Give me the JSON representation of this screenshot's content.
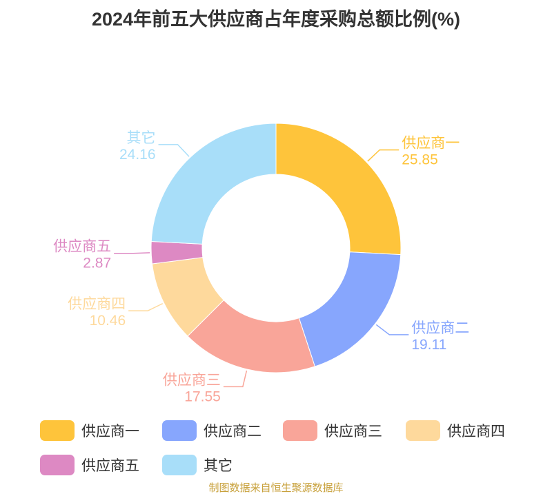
{
  "title": "2024年前五大供应商占年度采购总额比例(%)",
  "source": "制图数据来自恒生聚源数据库",
  "chart_data": {
    "type": "pie",
    "variant": "donut",
    "title": "2024年前五大供应商占年度采购总额比例(%)",
    "categories": [
      "供应商一",
      "供应商二",
      "供应商三",
      "供应商四",
      "供应商五",
      "其它"
    ],
    "values": [
      25.85,
      19.11,
      17.55,
      10.46,
      2.87,
      24.16
    ],
    "value_labels": [
      "25.85",
      "19.11",
      "17.55",
      "10.46",
      "2.87",
      "24.16"
    ],
    "colors": [
      "#fec43b",
      "#87a6fd",
      "#f9a599",
      "#fed99c",
      "#dd89c3",
      "#a8def9"
    ],
    "legend_position": "bottom"
  }
}
